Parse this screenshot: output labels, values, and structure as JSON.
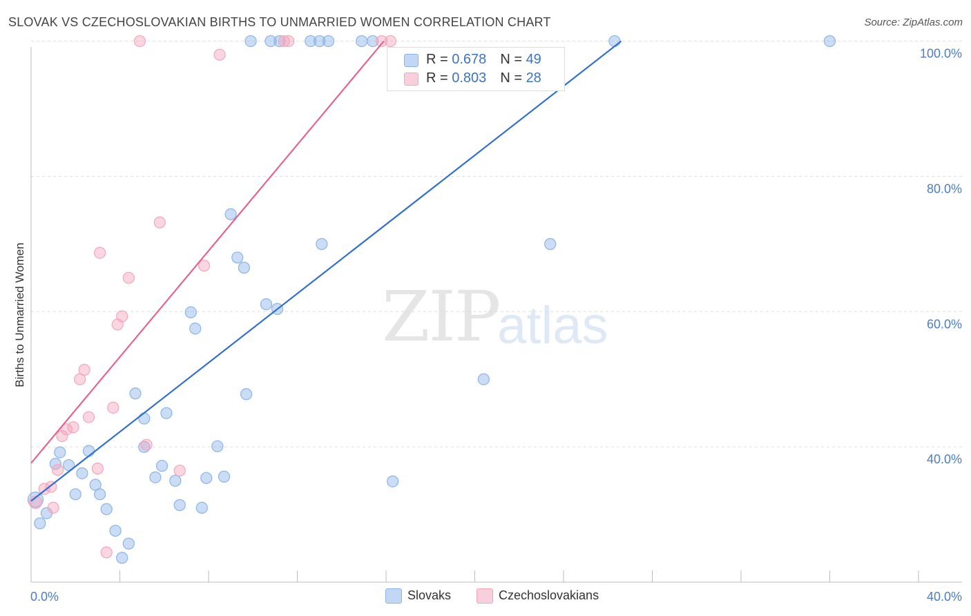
{
  "chart_data": {
    "type": "scatter",
    "title": "SLOVAK VS CZECHOSLOVAKIAN BIRTHS TO UNMARRIED WOMEN CORRELATION CHART",
    "source": "Source: ZipAtlas.com",
    "xlabel": "",
    "ylabel": "Births to Unmarried Women",
    "xlim": [
      0,
      40
    ],
    "ylim": [
      20,
      102
    ],
    "x_tick_labels": [
      "0.0%",
      "40.0%"
    ],
    "y_ticks": [
      40,
      60,
      80,
      100
    ],
    "y_tick_labels": [
      "40.0%",
      "60.0%",
      "80.0%",
      "100.0%"
    ],
    "grid": true,
    "watermark": {
      "part1": "ZIP",
      "part2": "atlas"
    },
    "legend": {
      "location": "top-center",
      "entries": [
        {
          "r_label": "R = ",
          "r_value": "0.678",
          "n_label": "N = ",
          "n_value": "49"
        },
        {
          "r_label": "R = ",
          "r_value": "0.803",
          "n_label": "N = ",
          "n_value": "28"
        }
      ]
    },
    "series": [
      {
        "name": "Slovaks",
        "color": "#8ab4e8",
        "line_color": "#2f6fce",
        "trend": {
          "x": [
            0.0,
            26.6
          ],
          "y": [
            32.0,
            100.0
          ]
        },
        "points": [
          [
            0.2,
            32.2,
            11
          ],
          [
            0.4,
            28.7,
            8
          ],
          [
            0.7,
            30.2,
            8
          ],
          [
            1.3,
            39.2,
            8
          ],
          [
            1.1,
            37.5,
            8
          ],
          [
            1.7,
            37.3,
            8
          ],
          [
            2.0,
            33.0,
            8
          ],
          [
            2.3,
            36.1,
            8
          ],
          [
            2.6,
            39.4,
            8
          ],
          [
            2.9,
            34.4,
            8
          ],
          [
            3.1,
            33.0,
            8
          ],
          [
            3.4,
            30.8,
            8
          ],
          [
            3.8,
            27.6,
            8
          ],
          [
            4.1,
            23.6,
            8
          ],
          [
            4.4,
            25.7,
            8
          ],
          [
            4.7,
            47.9,
            8
          ],
          [
            5.1,
            44.2,
            8
          ],
          [
            5.1,
            40.0,
            8
          ],
          [
            5.6,
            35.5,
            8
          ],
          [
            5.9,
            37.2,
            8
          ],
          [
            6.1,
            45.0,
            8
          ],
          [
            6.5,
            35.0,
            8
          ],
          [
            6.7,
            31.4,
            8
          ],
          [
            7.2,
            59.9,
            8
          ],
          [
            7.4,
            57.5,
            8
          ],
          [
            7.7,
            31.0,
            8
          ],
          [
            7.9,
            35.4,
            8
          ],
          [
            8.4,
            40.1,
            8
          ],
          [
            8.7,
            35.6,
            8
          ],
          [
            9.0,
            74.4,
            8
          ],
          [
            9.3,
            68.0,
            8
          ],
          [
            9.6,
            66.5,
            8
          ],
          [
            9.7,
            47.8,
            8
          ],
          [
            10.6,
            61.1,
            8
          ],
          [
            11.1,
            60.4,
            8
          ],
          [
            13.1,
            70.0,
            8
          ],
          [
            16.3,
            34.9,
            8
          ],
          [
            20.4,
            50.0,
            8
          ],
          [
            23.4,
            70.0,
            8
          ],
          [
            9.9,
            100.0,
            8
          ],
          [
            10.8,
            100.0,
            8
          ],
          [
            11.2,
            100.0,
            8
          ],
          [
            12.6,
            100.0,
            8
          ],
          [
            13.0,
            100.0,
            8
          ],
          [
            13.4,
            100.0,
            8
          ],
          [
            14.9,
            100.0,
            8
          ],
          [
            15.4,
            100.0,
            8
          ],
          [
            26.3,
            100.0,
            8
          ],
          [
            36.0,
            100.0,
            8
          ]
        ]
      },
      {
        "name": "Czechoslovakians",
        "color": "#f4a5bd",
        "line_color": "#e3648c",
        "trend": {
          "x": [
            0.0,
            15.9
          ],
          "y": [
            37.6,
            100.0
          ]
        },
        "points": [
          [
            0.2,
            31.8,
            9
          ],
          [
            0.6,
            33.8,
            8
          ],
          [
            0.9,
            34.1,
            8
          ],
          [
            1.0,
            31.0,
            8
          ],
          [
            1.2,
            36.6,
            8
          ],
          [
            1.4,
            41.6,
            8
          ],
          [
            1.6,
            42.6,
            8
          ],
          [
            1.9,
            42.9,
            8
          ],
          [
            2.2,
            50.0,
            8
          ],
          [
            2.4,
            51.4,
            8
          ],
          [
            2.6,
            44.4,
            8
          ],
          [
            3.0,
            36.8,
            8
          ],
          [
            3.1,
            68.7,
            8
          ],
          [
            3.4,
            24.4,
            8
          ],
          [
            3.7,
            45.8,
            8
          ],
          [
            3.9,
            58.1,
            8
          ],
          [
            4.1,
            59.3,
            8
          ],
          [
            4.4,
            65.0,
            8
          ],
          [
            5.2,
            40.3,
            8
          ],
          [
            5.8,
            73.2,
            8
          ],
          [
            6.7,
            36.5,
            8
          ],
          [
            7.8,
            66.8,
            8
          ],
          [
            8.5,
            98.0,
            8
          ],
          [
            4.9,
            100.0,
            8
          ],
          [
            11.4,
            100.0,
            8
          ],
          [
            11.6,
            100.0,
            8
          ],
          [
            15.8,
            100.0,
            8
          ],
          [
            16.2,
            100.0,
            8
          ]
        ]
      }
    ]
  }
}
